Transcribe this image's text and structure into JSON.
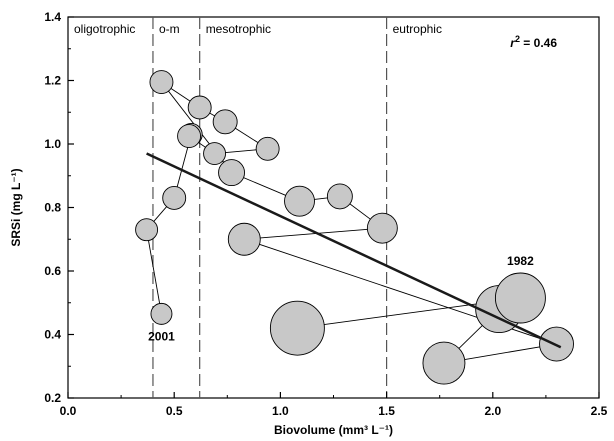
{
  "chart_data": {
    "type": "scatter",
    "xlabel": "Biovolume (mm³ L⁻¹)",
    "ylabel": "SRSi (mg L⁻¹)",
    "xlim": [
      0.0,
      2.5
    ],
    "ylim": [
      0.2,
      1.4
    ],
    "xticks": [
      0.0,
      0.5,
      1.0,
      1.5,
      2.0,
      2.5
    ],
    "xtick_labels": [
      "0.0",
      "0.5",
      "1.0",
      "1.5",
      "2.0",
      "2.5"
    ],
    "yticks": [
      0.2,
      0.4,
      0.6,
      0.8,
      1.0,
      1.2,
      1.4
    ],
    "ytick_labels": [
      "0.2",
      "0.4",
      "0.6",
      "0.8",
      "1.0",
      "1.2",
      "1.4"
    ],
    "grid": false,
    "colors": {
      "bubble_fill": "#c8c8c8",
      "bubble_stroke": "#000000",
      "regression": "#1a1a1a"
    },
    "zone_boundaries": [
      0.4,
      0.62,
      1.5
    ],
    "zones": [
      {
        "label": "oligotrophic",
        "x_start": 0.0
      },
      {
        "label": "o-m",
        "x_start": 0.4
      },
      {
        "label": "mesotrophic",
        "x_start": 0.62
      },
      {
        "label": "eutrophic",
        "x_start": 1.5
      }
    ],
    "r_squared": {
      "label": "r",
      "superscript": "2",
      "text": " = 0.46"
    },
    "regression_line": {
      "x": [
        0.37,
        2.32
      ],
      "y": [
        0.97,
        0.36
      ]
    },
    "points": [
      {
        "x": 0.44,
        "y": 0.465,
        "size": 10.5
      },
      {
        "x": 0.37,
        "y": 0.73,
        "size": 11
      },
      {
        "x": 0.5,
        "y": 0.83,
        "size": 11.5
      },
      {
        "x": 0.58,
        "y": 1.03,
        "size": 11
      },
      {
        "x": 0.57,
        "y": 1.025,
        "size": 11.5
      },
      {
        "x": 0.69,
        "y": 0.97,
        "size": 11
      },
      {
        "x": 0.94,
        "y": 0.985,
        "size": 11.5
      },
      {
        "x": 0.74,
        "y": 1.07,
        "size": 12
      },
      {
        "x": 0.62,
        "y": 1.115,
        "size": 11.5
      },
      {
        "x": 0.44,
        "y": 1.195,
        "size": 11.5
      },
      {
        "x": 0.77,
        "y": 0.91,
        "size": 13
      },
      {
        "x": 1.09,
        "y": 0.82,
        "size": 15
      },
      {
        "x": 1.28,
        "y": 0.835,
        "size": 12.5
      },
      {
        "x": 1.48,
        "y": 0.735,
        "size": 15
      },
      {
        "x": 0.83,
        "y": 0.7,
        "size": 16
      },
      {
        "x": 2.3,
        "y": 0.37,
        "size": 17
      },
      {
        "x": 1.77,
        "y": 0.31,
        "size": 21
      },
      {
        "x": 2.03,
        "y": 0.48,
        "size": 23.5
      },
      {
        "x": 2.13,
        "y": 0.515,
        "size": 25
      },
      {
        "x": 1.08,
        "y": 0.42,
        "size": 27
      }
    ],
    "connection_order": [
      0,
      1,
      2,
      3,
      4,
      5,
      6,
      7,
      8,
      9,
      10,
      11,
      12,
      13,
      14,
      15,
      16,
      17,
      18,
      19
    ],
    "annotations": [
      {
        "text": "2001",
        "x": 0.44,
        "y": 0.465,
        "position": "below"
      },
      {
        "text": "1982",
        "x": 2.13,
        "y": 0.515,
        "position": "above"
      }
    ]
  }
}
